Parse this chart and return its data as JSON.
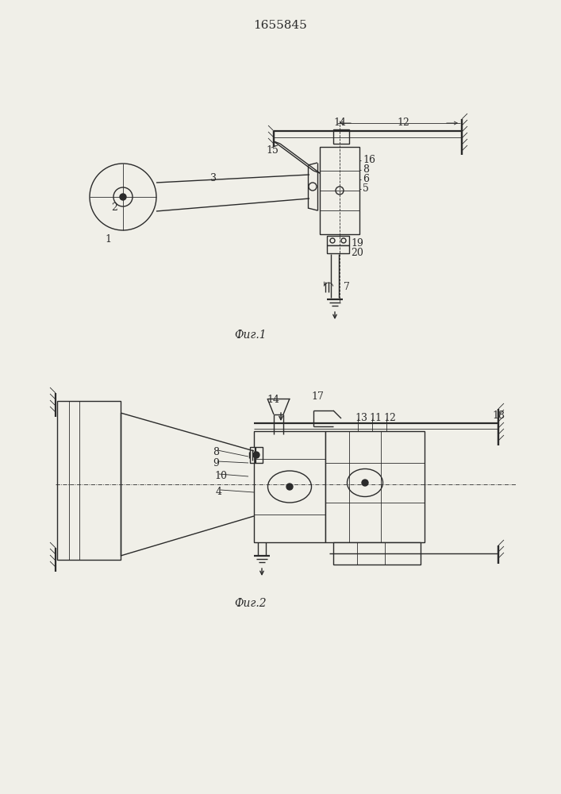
{
  "title": "1655845",
  "fig1_caption": "Фиг.1",
  "fig2_caption": "Фиг.2",
  "line_color": "#2a2a2a",
  "bg_color": "#f0efe8",
  "lw": 1.0,
  "lw_thin": 0.6,
  "lw_thick": 1.6
}
